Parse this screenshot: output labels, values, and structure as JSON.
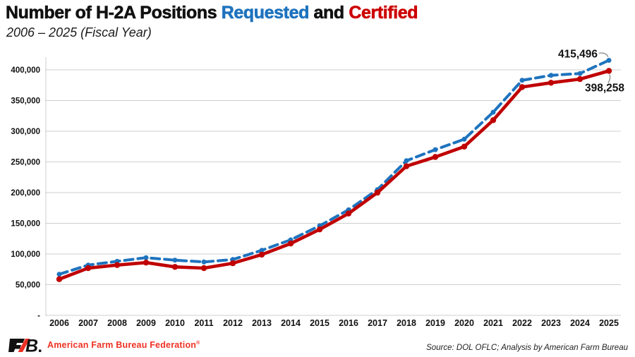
{
  "title": {
    "prefix": "Number of H-2A Positions ",
    "requested_word": "Requested",
    "and_word": " and ",
    "certified_word": "Certified"
  },
  "subtitle": "2006 – 2025 (Fiscal Year)",
  "colors": {
    "requested_blue": "#1E73BE",
    "certified_red": "#C00000",
    "grid_gray": "#CFCFCF",
    "brand_red": "#EE3124",
    "leader_gray": "#8f8f8f"
  },
  "chart_data": {
    "type": "line",
    "x": [
      2006,
      2007,
      2008,
      2009,
      2010,
      2011,
      2012,
      2013,
      2014,
      2015,
      2016,
      2017,
      2018,
      2019,
      2020,
      2021,
      2022,
      2023,
      2024,
      2025
    ],
    "series": [
      {
        "name": "Requested",
        "color": "#1E73BE",
        "style": "dashed",
        "marker": "circle",
        "values": [
          67000,
          82000,
          88000,
          94000,
          90000,
          87000,
          91000,
          106000,
          123000,
          146000,
          172000,
          205000,
          252000,
          270000,
          287000,
          331000,
          383000,
          391000,
          394000,
          415496
        ]
      },
      {
        "name": "Certified",
        "color": "#C00000",
        "style": "solid",
        "marker": "circle",
        "values": [
          59000,
          77000,
          82000,
          86000,
          79000,
          77000,
          85000,
          99000,
          117000,
          140000,
          166000,
          200000,
          243000,
          258000,
          275000,
          318000,
          372000,
          379000,
          385000,
          398258
        ]
      }
    ],
    "ylim": [
      0,
      420000
    ],
    "yticks": [
      0,
      50000,
      100000,
      150000,
      200000,
      250000,
      300000,
      350000,
      400000
    ],
    "ytick_labels": [
      "-",
      "50,000",
      "100,000",
      "150,000",
      "200,000",
      "250,000",
      "300,000",
      "350,000",
      "400,000"
    ],
    "grid": true,
    "legend": "in-title-colored-words",
    "annotations": [
      {
        "series": "Requested",
        "x": 2025,
        "label": "415,496"
      },
      {
        "series": "Certified",
        "x": 2025,
        "label": "398,258"
      }
    ]
  },
  "footer": {
    "brand": "American Farm Bureau Federation",
    "brand_mark": "®",
    "source": "Source: DOL OFLC; Analysis by American Farm Bureau"
  }
}
